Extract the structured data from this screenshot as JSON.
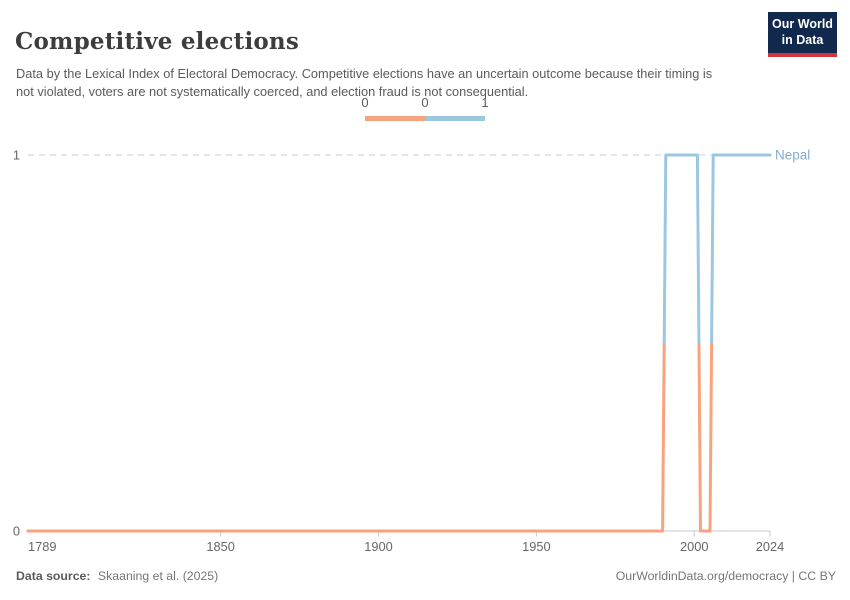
{
  "header": {
    "title": "Competitive elections",
    "subtitle": "Data by the Lexical Index of Electoral Democracy. Competitive elections have an uncertain outcome because their timing is not violated, voters are not systematically coerced, and election fraud is not consequential."
  },
  "logo": {
    "line1": "Our World",
    "line2": "in Data",
    "bg_color": "#12294e",
    "accent_color": "#d0353f"
  },
  "legend": {
    "tick_labels": [
      "0",
      "0",
      "1"
    ]
  },
  "chart_data": {
    "type": "line",
    "title": "Competitive elections",
    "entity": "Nepal",
    "entity_label_color": "#82aecd",
    "value_colors": {
      "0": "#f7a47e",
      "1": "#9cc7e0"
    },
    "axis_color": "#c8c8c8",
    "gridline_color": "#cccccc",
    "tick_label_color": "#666666",
    "x": {
      "min": 1789,
      "max": 2024,
      "ticks": [
        1789,
        1850,
        1900,
        1950,
        2000,
        2024
      ],
      "tick_labels": [
        "1789",
        "1850",
        "1900",
        "1950",
        "2000",
        "2024"
      ]
    },
    "y": {
      "min": 0,
      "max": 1,
      "ticks": [
        0,
        1
      ],
      "tick_labels": [
        "0",
        "1"
      ]
    },
    "series": [
      {
        "name": "Nepal",
        "points": [
          [
            1789,
            0
          ],
          [
            1990,
            0
          ],
          [
            1991,
            1
          ],
          [
            2001,
            1
          ],
          [
            2002,
            0
          ],
          [
            2005,
            0
          ],
          [
            2006,
            1
          ],
          [
            2024,
            1
          ]
        ]
      }
    ]
  },
  "footer": {
    "source_label": "Data source:",
    "source_value": "Skaaning et al. (2025)",
    "right": "OurWorldinData.org/democracy | CC BY"
  }
}
